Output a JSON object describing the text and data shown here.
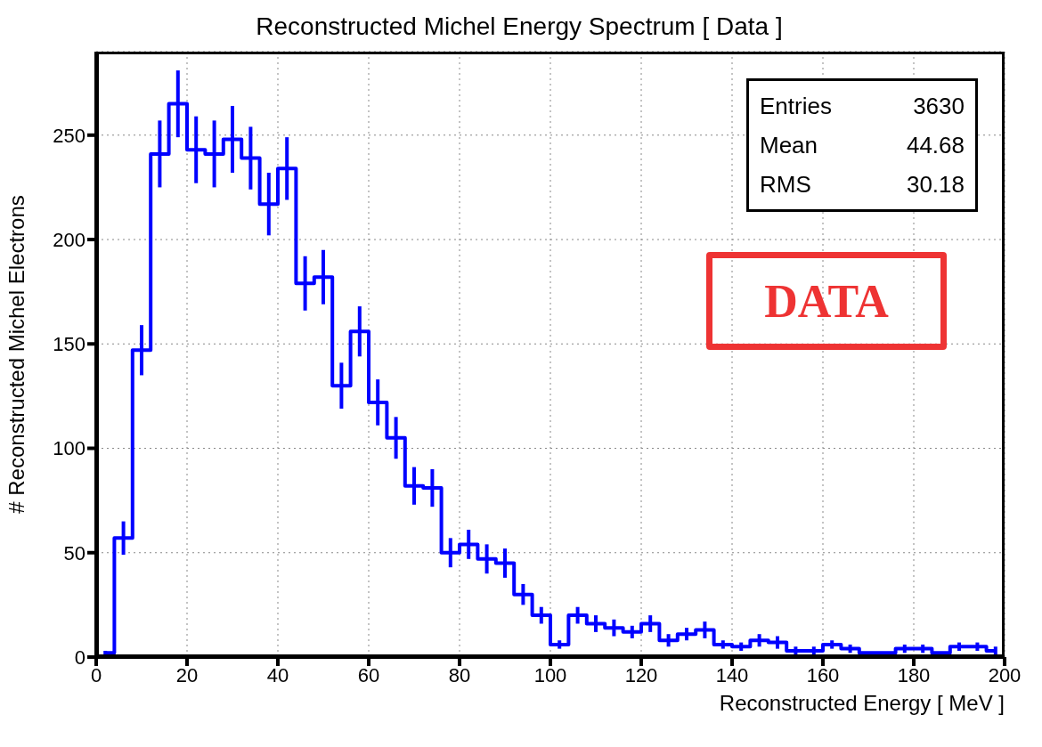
{
  "chart_data": {
    "type": "step",
    "title": "Reconstructed Michel Energy Spectrum [ Data ]",
    "xlabel": "Reconstructed Energy [ MeV ]",
    "ylabel": "# Reconstructed Michel Electrons",
    "x": [
      2,
      6,
      10,
      14,
      18,
      22,
      26,
      30,
      34,
      38,
      42,
      46,
      50,
      54,
      58,
      62,
      66,
      70,
      74,
      78,
      82,
      86,
      90,
      94,
      98,
      102,
      106,
      110,
      114,
      118,
      122,
      126,
      130,
      134,
      138,
      142,
      146,
      150,
      154,
      158,
      162,
      166,
      170,
      174,
      178,
      182,
      186,
      190,
      194,
      198
    ],
    "values": [
      2,
      57,
      147,
      241,
      265,
      243,
      241,
      248,
      239,
      217,
      234,
      179,
      182,
      130,
      156,
      122,
      105,
      82,
      81,
      50,
      54,
      47,
      45,
      30,
      20,
      6,
      20,
      16,
      14,
      12,
      16,
      8,
      11,
      13,
      6,
      5,
      8,
      7,
      3,
      3,
      6,
      4,
      2,
      2,
      4,
      4,
      2,
      5,
      5,
      3
    ],
    "errors": [
      1,
      8,
      12,
      16,
      16,
      16,
      16,
      16,
      15,
      15,
      15,
      13,
      13,
      11,
      12,
      11,
      10,
      9,
      9,
      7,
      7,
      7,
      7,
      5,
      4,
      2,
      4,
      4,
      4,
      3,
      4,
      3,
      3,
      4,
      2,
      2,
      3,
      3,
      2,
      2,
      2,
      2,
      null,
      null,
      2,
      2,
      null,
      2,
      2,
      2
    ],
    "color": "#0000ff",
    "marker": "none",
    "xlim": [
      0,
      200
    ],
    "xticks": [
      0,
      20,
      40,
      60,
      80,
      100,
      120,
      140,
      160,
      180,
      200
    ],
    "ylim": [
      0,
      290
    ],
    "yticks": [
      0,
      50,
      100,
      150,
      200,
      250
    ],
    "grid": true,
    "annotations": [
      "Entries 3630",
      "Mean 44.68",
      "RMS 30.18",
      "DATA"
    ]
  }
}
